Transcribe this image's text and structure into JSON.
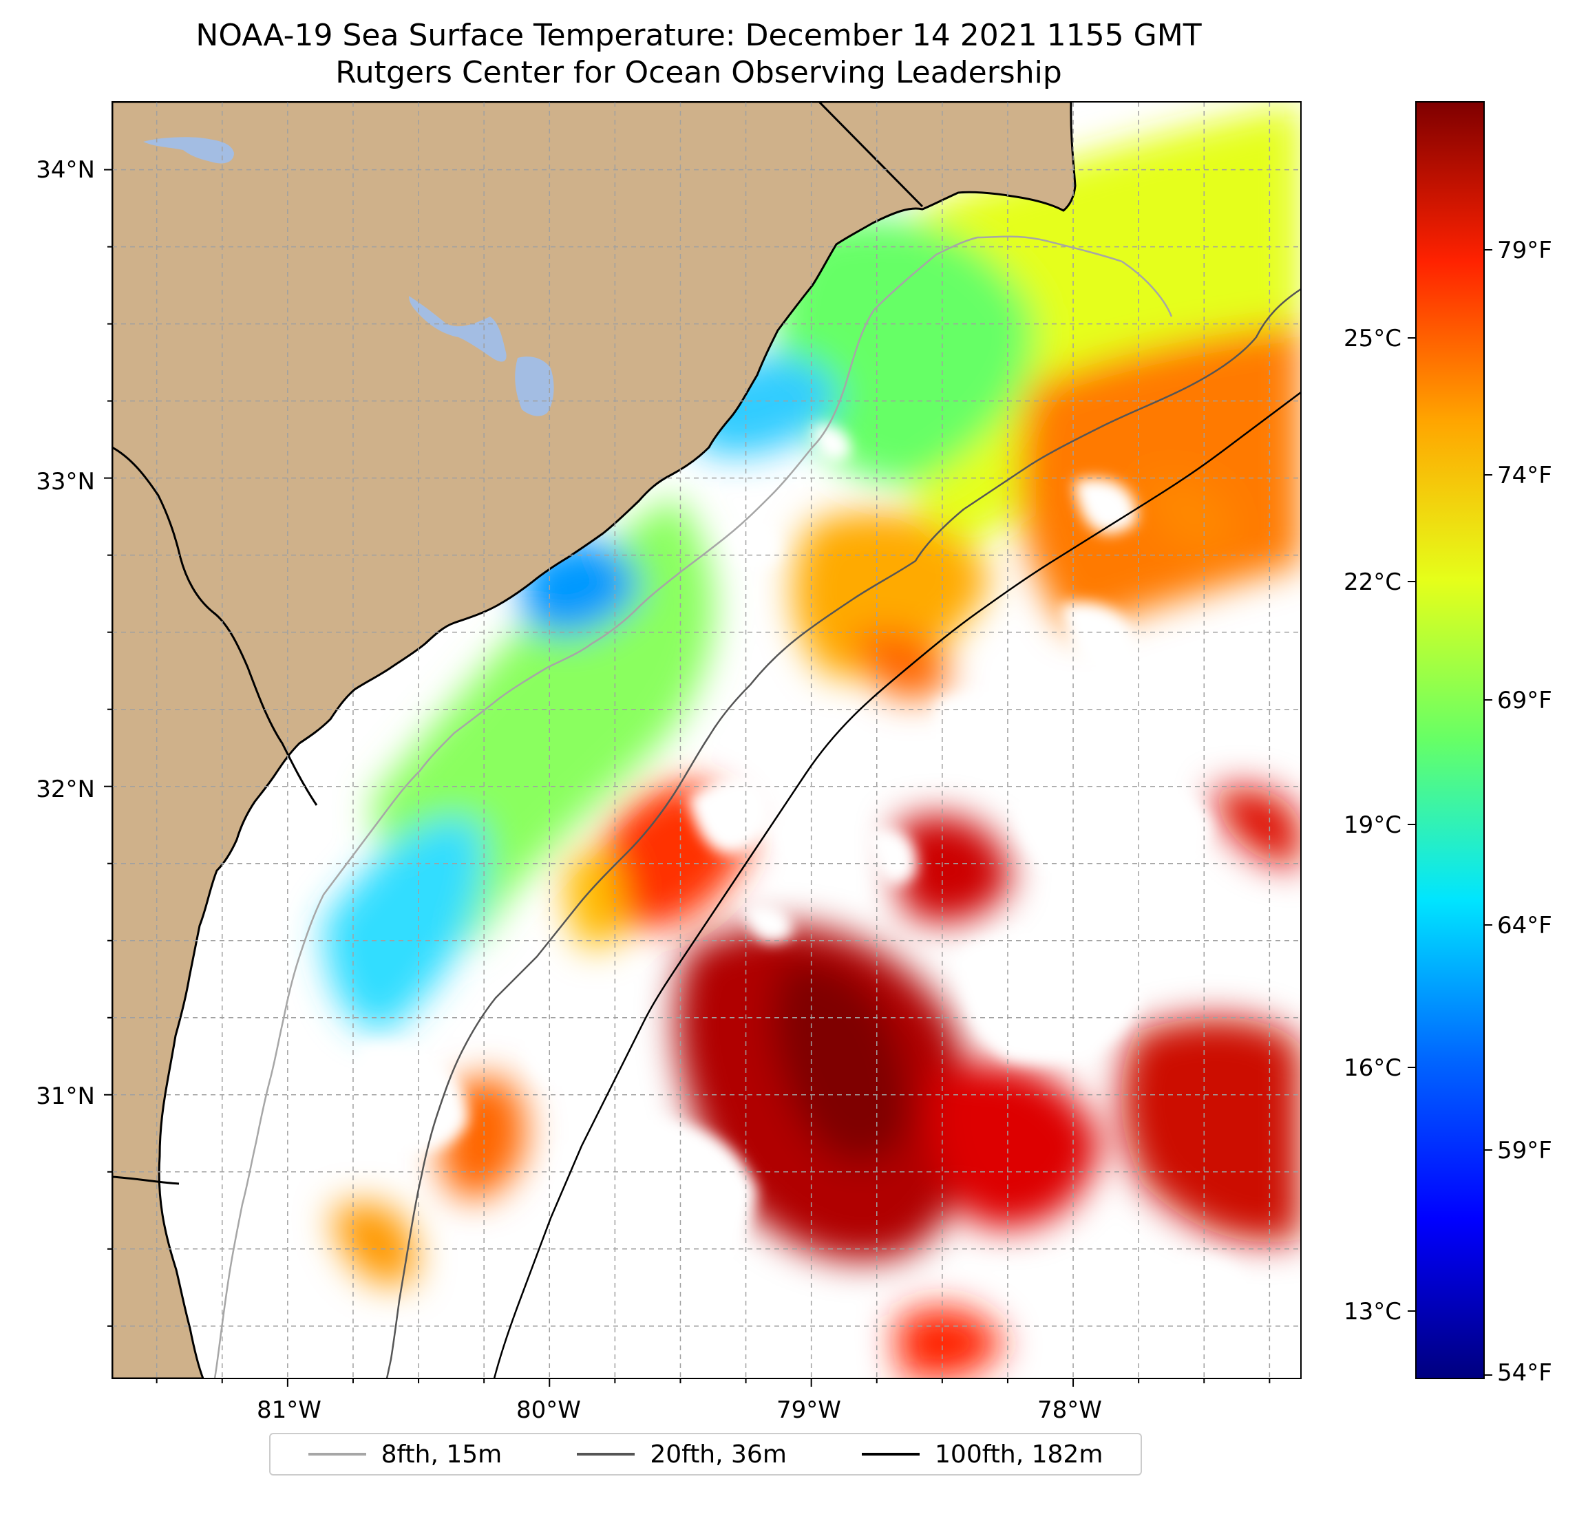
{
  "title": {
    "line1": "NOAA-19 Sea Surface Temperature: December 14 2021 1155 GMT",
    "line2": "Rutgers Center for Ocean Observing Leadership"
  },
  "map": {
    "lon_range": [
      -81.67,
      -77.13
    ],
    "lat_range": [
      30.08,
      34.22
    ],
    "lon_ticks": [
      "81°W",
      "80°W",
      "79°W",
      "78°W"
    ],
    "lat_ticks": [
      "34°N",
      "33°N",
      "32°N",
      "31°N"
    ],
    "colors": {
      "land": "#cfb18a",
      "lake": "#a3bde3",
      "nodata": "#ffffff",
      "grid": "#a0a0a0"
    }
  },
  "colorbar": {
    "colormap": "jet",
    "range_c": [
      12.2,
      28.2
    ],
    "celsius_ticks": [
      "25°C",
      "22°C",
      "19°C",
      "16°C",
      "13°C"
    ],
    "fahrenheit_ticks": [
      "79°F",
      "74°F",
      "69°F",
      "64°F",
      "59°F",
      "54°F"
    ]
  },
  "legend": {
    "items": [
      {
        "label": "8fth, 15m",
        "color": "#a6a6a6"
      },
      {
        "label": "20fth, 36m",
        "color": "#555555"
      },
      {
        "label": "100fth, 182m",
        "color": "#000000"
      }
    ]
  }
}
